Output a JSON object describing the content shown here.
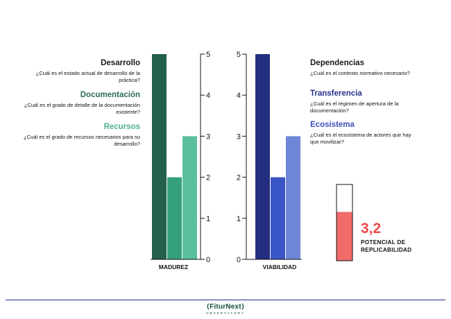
{
  "chart_data": [
    {
      "type": "bar",
      "xlabel": "MADUREZ",
      "categories": [
        "Desarrollo",
        "Documentación",
        "Recursos"
      ],
      "values": [
        5,
        2,
        3
      ],
      "colors": [
        "#245f4d",
        "#35a07d",
        "#5bbf9d"
      ],
      "ylim": [
        0,
        5
      ],
      "yticks": [
        0,
        1,
        2,
        3,
        4,
        5
      ],
      "axis_side": "right"
    },
    {
      "type": "bar",
      "xlabel": "VIABILIDAD",
      "categories": [
        "Dependencias",
        "Transferencia",
        "Ecosistema"
      ],
      "values": [
        5,
        2,
        3
      ],
      "colors": [
        "#232f7e",
        "#3a55c6",
        "#6e86d6"
      ],
      "ylim": [
        0,
        5
      ],
      "yticks": [
        0,
        1,
        2,
        3,
        4,
        5
      ],
      "axis_side": "left"
    }
  ],
  "madurez": [
    {
      "title": "Desarrollo",
      "desc": "¿Cuál es el estado actual de desarrollo de la práctica?",
      "color": "#1a1a1a"
    },
    {
      "title": "Documentación",
      "desc": "¿Cuál es el grado de detalle de la documentación existente?",
      "color": "#2a6d52"
    },
    {
      "title": "Recursos",
      "desc": "¿Cuál es el grado de recursos necesarios para su desarrollo?",
      "color": "#4caf8b"
    }
  ],
  "viabilidad": [
    {
      "title": "Dependencias",
      "desc": "¿Cuál es el contexto normativo necesario?",
      "color": "#1a1a1a"
    },
    {
      "title": "Transferencia",
      "desc": "¿Cuál es el régimen de apertura de la documentación?",
      "color": "#27318c"
    },
    {
      "title": "Ecosistema",
      "desc": "¿Cuál es el ecosistema de actores que hay que movilizar?",
      "color": "#3b4fb8"
    }
  ],
  "potential": {
    "score": "3,2",
    "label": "POTENCIAL DE REPLICABILIDAD",
    "fill_fraction": 0.64,
    "fill_color": "#f26b6b"
  },
  "footer": {
    "logo_main": "⟨FiturNext⟩",
    "logo_sub": "OBSERVATORY"
  }
}
